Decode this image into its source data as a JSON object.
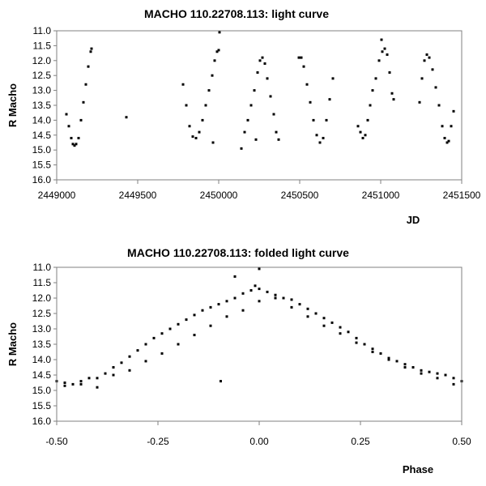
{
  "chart_data": [
    {
      "type": "scatter",
      "title": "MACHO 110.22708.113: light curve",
      "xlabel": "JD",
      "ylabel": "R Macho",
      "xlim": [
        2449000,
        2451500
      ],
      "ylim": [
        16.0,
        11.0
      ],
      "y_inverted": true,
      "xticks": [
        2449000,
        2449500,
        2450000,
        2450500,
        2451000,
        2451500
      ],
      "xtick_labels": [
        "2449000",
        "2449500",
        "2450000",
        "2450500",
        "2451000",
        "2451500"
      ],
      "yticks": [
        11.0,
        11.5,
        12.0,
        12.5,
        13.0,
        13.5,
        14.0,
        14.5,
        15.0,
        15.5,
        16.0
      ],
      "ytick_labels": [
        "11.0",
        "11.5",
        "12.0",
        "12.5",
        "13.0",
        "13.5",
        "14.0",
        "14.5",
        "15.0",
        "15.5",
        "16.0"
      ],
      "series": [
        {
          "name": "R Macho",
          "points": [
            [
              2449060,
              13.8
            ],
            [
              2449075,
              14.2
            ],
            [
              2449090,
              14.6
            ],
            [
              2449100,
              14.8
            ],
            [
              2449110,
              14.85
            ],
            [
              2449120,
              14.8
            ],
            [
              2449135,
              14.6
            ],
            [
              2449150,
              14.0
            ],
            [
              2449165,
              13.4
            ],
            [
              2449180,
              12.8
            ],
            [
              2449195,
              12.2
            ],
            [
              2449210,
              11.7
            ],
            [
              2449215,
              11.6
            ],
            [
              2449430,
              13.9
            ],
            [
              2449780,
              12.8
            ],
            [
              2449800,
              13.5
            ],
            [
              2449820,
              14.2
            ],
            [
              2449840,
              14.55
            ],
            [
              2449860,
              14.6
            ],
            [
              2449880,
              14.4
            ],
            [
              2449900,
              14.0
            ],
            [
              2449920,
              13.5
            ],
            [
              2449940,
              13.0
            ],
            [
              2449960,
              12.5
            ],
            [
              2449975,
              12.0
            ],
            [
              2449990,
              11.7
            ],
            [
              2450000,
              11.65
            ],
            [
              2450005,
              11.05
            ],
            [
              2449965,
              14.75
            ],
            [
              2450140,
              14.95
            ],
            [
              2450160,
              14.4
            ],
            [
              2450180,
              14.0
            ],
            [
              2450200,
              13.5
            ],
            [
              2450220,
              13.0
            ],
            [
              2450240,
              12.4
            ],
            [
              2450255,
              12.0
            ],
            [
              2450270,
              11.9
            ],
            [
              2450285,
              12.1
            ],
            [
              2450300,
              12.6
            ],
            [
              2450320,
              13.2
            ],
            [
              2450340,
              13.8
            ],
            [
              2450355,
              14.4
            ],
            [
              2450370,
              14.65
            ],
            [
              2450230,
              14.65
            ],
            [
              2450495,
              11.9
            ],
            [
              2450510,
              11.9
            ],
            [
              2450525,
              12.2
            ],
            [
              2450545,
              12.8
            ],
            [
              2450565,
              13.4
            ],
            [
              2450585,
              14.0
            ],
            [
              2450605,
              14.5
            ],
            [
              2450625,
              14.75
            ],
            [
              2450645,
              14.6
            ],
            [
              2450665,
              14.0
            ],
            [
              2450685,
              13.3
            ],
            [
              2450705,
              12.6
            ],
            [
              2450860,
              14.2
            ],
            [
              2450875,
              14.4
            ],
            [
              2450890,
              14.6
            ],
            [
              2450905,
              14.5
            ],
            [
              2450920,
              14.0
            ],
            [
              2450935,
              13.5
            ],
            [
              2450950,
              13.0
            ],
            [
              2450970,
              12.6
            ],
            [
              2450990,
              12.0
            ],
            [
              2451010,
              11.7
            ],
            [
              2451025,
              11.6
            ],
            [
              2451040,
              11.8
            ],
            [
              2451055,
              12.4
            ],
            [
              2451070,
              13.1
            ],
            [
              2451080,
              13.3
            ],
            [
              2451005,
              11.3
            ],
            [
              2451240,
              13.4
            ],
            [
              2451255,
              12.6
            ],
            [
              2451270,
              12.0
            ],
            [
              2451285,
              11.8
            ],
            [
              2451300,
              11.9
            ],
            [
              2451320,
              12.3
            ],
            [
              2451340,
              12.9
            ],
            [
              2451360,
              13.5
            ],
            [
              2451380,
              14.2
            ],
            [
              2451395,
              14.6
            ],
            [
              2451410,
              14.75
            ],
            [
              2451420,
              14.7
            ],
            [
              2451435,
              14.2
            ],
            [
              2451450,
              13.7
            ]
          ]
        }
      ]
    },
    {
      "type": "scatter",
      "title": "MACHO 110.22708.113: folded light curve",
      "xlabel": "Phase",
      "ylabel": "R Macho",
      "xlim": [
        -0.5,
        0.5
      ],
      "ylim": [
        16.0,
        11.0
      ],
      "y_inverted": true,
      "xticks": [
        -0.5,
        -0.25,
        0.0,
        0.25,
        0.5
      ],
      "xtick_labels": [
        "-0.50",
        "-0.25",
        "0.00",
        "0.25",
        "0.50"
      ],
      "yticks": [
        11.0,
        11.5,
        12.0,
        12.5,
        13.0,
        13.5,
        14.0,
        14.5,
        15.0,
        15.5,
        16.0
      ],
      "ytick_labels": [
        "11.0",
        "11.5",
        "12.0",
        "12.5",
        "13.0",
        "13.5",
        "14.0",
        "14.5",
        "15.0",
        "15.5",
        "16.0"
      ],
      "series": [
        {
          "name": "R Macho",
          "points": [
            [
              -0.5,
              14.7
            ],
            [
              -0.48,
              14.75
            ],
            [
              -0.46,
              14.8
            ],
            [
              -0.44,
              14.7
            ],
            [
              -0.42,
              14.6
            ],
            [
              -0.4,
              14.6
            ],
            [
              -0.38,
              14.45
            ],
            [
              -0.36,
              14.25
            ],
            [
              -0.34,
              14.1
            ],
            [
              -0.32,
              13.9
            ],
            [
              -0.3,
              13.7
            ],
            [
              -0.28,
              13.5
            ],
            [
              -0.26,
              13.3
            ],
            [
              -0.24,
              13.15
            ],
            [
              -0.22,
              13.0
            ],
            [
              -0.2,
              12.85
            ],
            [
              -0.18,
              12.7
            ],
            [
              -0.16,
              12.55
            ],
            [
              -0.14,
              12.4
            ],
            [
              -0.12,
              12.3
            ],
            [
              -0.1,
              12.2
            ],
            [
              -0.08,
              12.1
            ],
            [
              -0.06,
              12.0
            ],
            [
              -0.04,
              11.85
            ],
            [
              -0.02,
              11.75
            ],
            [
              0.0,
              11.7
            ],
            [
              0.02,
              11.8
            ],
            [
              0.04,
              11.9
            ],
            [
              0.06,
              12.0
            ],
            [
              0.08,
              12.05
            ],
            [
              0.1,
              12.2
            ],
            [
              0.12,
              12.35
            ],
            [
              0.14,
              12.5
            ],
            [
              0.16,
              12.65
            ],
            [
              0.18,
              12.8
            ],
            [
              0.2,
              12.95
            ],
            [
              0.22,
              13.1
            ],
            [
              0.24,
              13.3
            ],
            [
              0.26,
              13.5
            ],
            [
              0.28,
              13.65
            ],
            [
              0.3,
              13.8
            ],
            [
              0.32,
              13.95
            ],
            [
              0.34,
              14.05
            ],
            [
              0.36,
              14.15
            ],
            [
              0.38,
              14.25
            ],
            [
              0.4,
              14.35
            ],
            [
              0.42,
              14.4
            ],
            [
              0.44,
              14.45
            ],
            [
              0.46,
              14.5
            ],
            [
              0.48,
              14.6
            ],
            [
              0.5,
              14.7
            ],
            [
              -0.48,
              14.85
            ],
            [
              -0.44,
              14.8
            ],
            [
              -0.4,
              14.9
            ],
            [
              -0.36,
              14.5
            ],
            [
              -0.32,
              14.35
            ],
            [
              -0.28,
              14.05
            ],
            [
              -0.24,
              13.8
            ],
            [
              -0.2,
              13.5
            ],
            [
              -0.16,
              13.2
            ],
            [
              -0.12,
              12.9
            ],
            [
              -0.08,
              12.6
            ],
            [
              -0.04,
              12.4
            ],
            [
              0.0,
              12.1
            ],
            [
              0.04,
              12.0
            ],
            [
              0.08,
              12.3
            ],
            [
              0.12,
              12.6
            ],
            [
              0.16,
              12.9
            ],
            [
              0.2,
              13.15
            ],
            [
              0.24,
              13.45
            ],
            [
              0.28,
              13.75
            ],
            [
              0.32,
              14.0
            ],
            [
              0.36,
              14.25
            ],
            [
              0.4,
              14.45
            ],
            [
              0.44,
              14.6
            ],
            [
              0.48,
              14.8
            ],
            [
              -0.095,
              14.7
            ],
            [
              -0.06,
              11.3
            ],
            [
              0.0,
              11.05
            ],
            [
              -0.01,
              11.6
            ]
          ]
        }
      ]
    }
  ]
}
